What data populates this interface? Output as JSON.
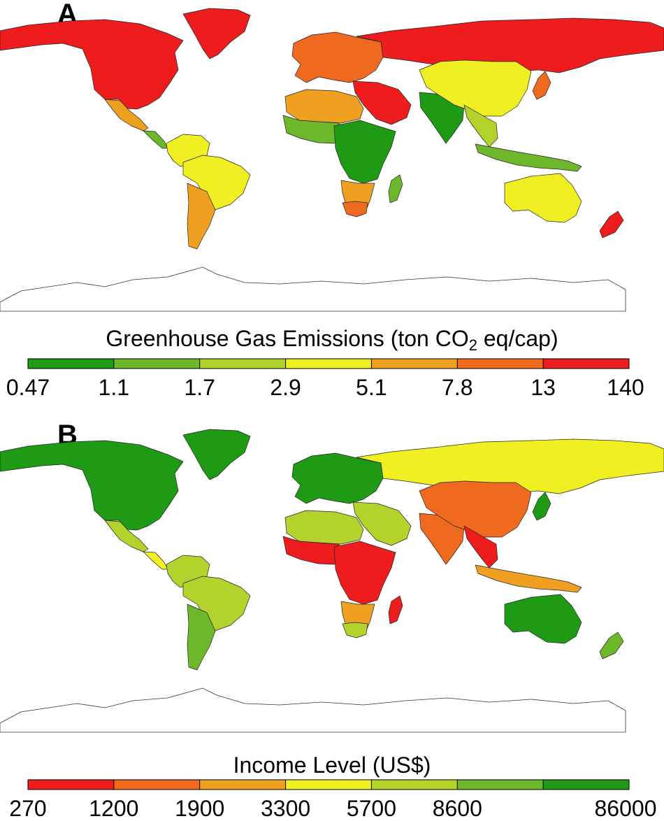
{
  "panel_a": {
    "letter": "A",
    "legend": {
      "title_main": "Greenhouse Gas Emissions (ton CO",
      "title_sub": "2",
      "title_tail": " eq/cap)",
      "ticks": [
        "0.47",
        "1.1",
        "1.7",
        "2.9",
        "5.1",
        "7.8",
        "13",
        "140"
      ],
      "colors": [
        "#1e9a14",
        "#6db82a",
        "#b4d22c",
        "#f0ef22",
        "#f0a020",
        "#ef6a1e",
        "#ee1c1c"
      ]
    },
    "regions": [
      {
        "name": "north-america",
        "class": 6
      },
      {
        "name": "greenland",
        "class": 6
      },
      {
        "name": "mexico",
        "class": 4
      },
      {
        "name": "central-america",
        "class": 1
      },
      {
        "name": "south-america-north",
        "class": 3
      },
      {
        "name": "brazil",
        "class": 3
      },
      {
        "name": "argentina",
        "class": 4
      },
      {
        "name": "europe",
        "class": 5
      },
      {
        "name": "russia",
        "class": 6
      },
      {
        "name": "middle-east",
        "class": 6
      },
      {
        "name": "north-africa",
        "class": 4
      },
      {
        "name": "west-africa",
        "class": 1
      },
      {
        "name": "central-africa",
        "class": 0
      },
      {
        "name": "southern-africa",
        "class": 4
      },
      {
        "name": "south-africa",
        "class": 5
      },
      {
        "name": "india",
        "class": 0
      },
      {
        "name": "china",
        "class": 3
      },
      {
        "name": "southeast-asia",
        "class": 2
      },
      {
        "name": "japan",
        "class": 5
      },
      {
        "name": "indonesia",
        "class": 1
      },
      {
        "name": "australia",
        "class": 3
      },
      {
        "name": "new-zealand",
        "class": 6
      },
      {
        "name": "madagascar",
        "class": 1
      }
    ]
  },
  "panel_b": {
    "letter": "B",
    "legend": {
      "title": "Income Level (US$)",
      "ticks": [
        "270",
        "1200",
        "1900",
        "3300",
        "5700",
        "8600",
        "",
        "86000"
      ],
      "colors": [
        "#ee1c1c",
        "#ef6a1e",
        "#f0a020",
        "#f0ef22",
        "#b4d22c",
        "#6db82a",
        "#1e9a14"
      ]
    },
    "regions": [
      {
        "name": "north-america",
        "class": 6
      },
      {
        "name": "greenland",
        "class": 6
      },
      {
        "name": "mexico",
        "class": 4
      },
      {
        "name": "central-america",
        "class": 3
      },
      {
        "name": "south-america-north",
        "class": 4
      },
      {
        "name": "brazil",
        "class": 4
      },
      {
        "name": "argentina",
        "class": 5
      },
      {
        "name": "europe",
        "class": 6
      },
      {
        "name": "russia",
        "class": 3
      },
      {
        "name": "middle-east",
        "class": 4
      },
      {
        "name": "north-africa",
        "class": 4
      },
      {
        "name": "west-africa",
        "class": 0
      },
      {
        "name": "central-africa",
        "class": 0
      },
      {
        "name": "southern-africa",
        "class": 2
      },
      {
        "name": "south-africa",
        "class": 4
      },
      {
        "name": "india",
        "class": 1
      },
      {
        "name": "china",
        "class": 1
      },
      {
        "name": "southeast-asia",
        "class": 0
      },
      {
        "name": "japan",
        "class": 6
      },
      {
        "name": "indonesia",
        "class": 2
      },
      {
        "name": "australia",
        "class": 6
      },
      {
        "name": "new-zealand",
        "class": 5
      },
      {
        "name": "madagascar",
        "class": 0
      }
    ]
  }
}
